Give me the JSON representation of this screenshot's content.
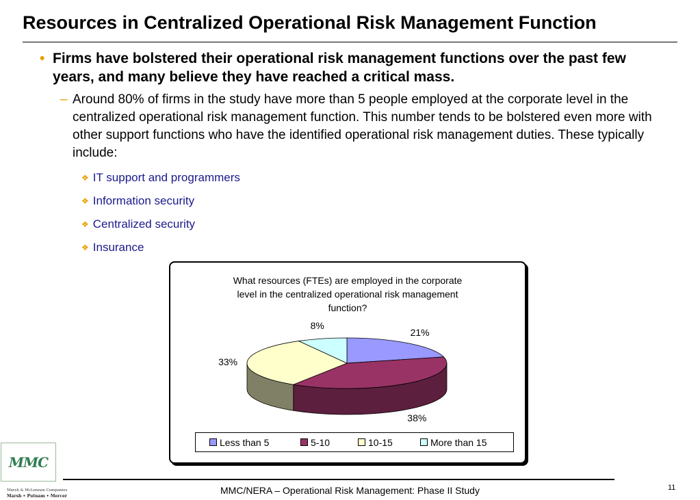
{
  "slide": {
    "title": "Resources in Centralized Operational Risk Management Function",
    "bullet": {
      "marker": "•",
      "text": "Firms have bolstered their operational risk management functions over the past few years, and many believe they have reached a critical mass."
    },
    "sub_bullet": {
      "marker": "–",
      "text": "Around 80% of firms in the study have more than 5 people employed at the corporate level in the centralized operational risk management function.  This number tends to be bolstered even more with other support functions who have the identified operational risk management duties.  These typically include:"
    },
    "sub_sub_marker": "❖",
    "list_items": [
      "IT support and programmers",
      "Information security",
      "Centralized security",
      "Insurance"
    ]
  },
  "chart_data": {
    "type": "pie",
    "title_lines": [
      "What resources (FTEs) are employed in the corporate",
      "level in the centralized operational risk management",
      "function?"
    ],
    "categories": [
      "Less than 5",
      "5-10",
      "10-15",
      "More than 15"
    ],
    "values": [
      21,
      38,
      33,
      8
    ],
    "labels": [
      "21%",
      "38%",
      "33%",
      "8%"
    ],
    "colors": [
      "#9999ff",
      "#993366",
      "#ffffcc",
      "#ccffff"
    ],
    "side_colors": [
      "#5c5c99",
      "#5c1f3d",
      "#808066",
      "#7a9999"
    ],
    "three_d": true,
    "legend_position": "bottom"
  },
  "footer": {
    "text": "MMC/NERA – Operational Risk Management: Phase II Study",
    "page_number": "11"
  },
  "logo": {
    "mark": "MMC",
    "line1": "Marsh & McLennan Companies",
    "line2": "Marsh • Putnam • Mercer"
  }
}
